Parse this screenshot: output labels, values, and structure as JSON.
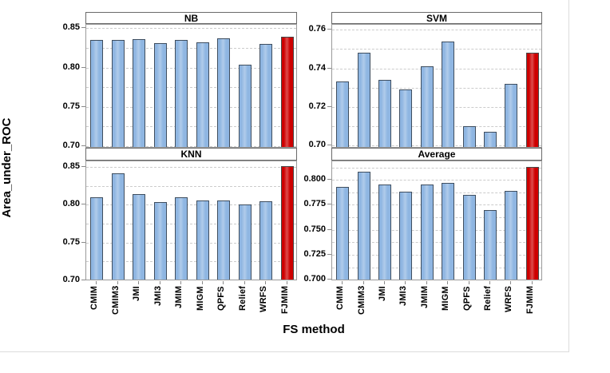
{
  "figure": {
    "ylabel": "Area_under_ROC",
    "xlabel": "FS method"
  },
  "colors": {
    "bar_fill": "#8FB6E2",
    "bar_edge": "#3F4E5F",
    "highlight_fill": "#CE0000",
    "highlight_edge": "#474747",
    "gridline": "#CCCCCC",
    "plot_border": "#9A9A9A",
    "band_border": "#6A6A6A",
    "tick": "#8A8A8A",
    "text": "#000000",
    "figure_edge": "#DCDCDC"
  },
  "chart_data": {
    "type": "bar",
    "title": "",
    "xlabel": "FS method",
    "ylabel": "Area_under_ROC",
    "grid": "horizontal dashed gridlines at major and minor (half-step) tick positions",
    "legend": "none",
    "categories": [
      "CMIM",
      "CMIM3",
      "JMI",
      "JMI3",
      "JMIM",
      "MIGM",
      "QPFS",
      "Relief",
      "WRFS",
      "FJMIM"
    ],
    "highlight_category": "FJMIM",
    "panels": [
      {
        "title": "NB",
        "ylim": [
          0.6965,
          0.8545
        ],
        "yticks": [
          {
            "value": 0.85,
            "label": "0.85"
          },
          {
            "value": 0.8,
            "label": "0.80"
          },
          {
            "value": 0.75,
            "label": "0.75"
          },
          {
            "value": 0.7,
            "label": "0.70"
          }
        ],
        "values": [
          0.835,
          0.835,
          0.836,
          0.831,
          0.835,
          0.832,
          0.837,
          0.804,
          0.83,
          0.839
        ]
      },
      {
        "title": "SVM",
        "ylim": [
          0.6985,
          0.7625
        ],
        "yticks": [
          {
            "value": 0.76,
            "label": "0.76"
          },
          {
            "value": 0.74,
            "label": "0.74"
          },
          {
            "value": 0.72,
            "label": "0.72"
          },
          {
            "value": 0.7,
            "label": "0.70"
          }
        ],
        "values": [
          0.733,
          0.748,
          0.734,
          0.729,
          0.741,
          0.754,
          0.71,
          0.707,
          0.732,
          0.748
        ]
      },
      {
        "title": "KNN",
        "ylim": [
          0.699,
          0.8575
        ],
        "yticks": [
          {
            "value": 0.85,
            "label": "0.85"
          },
          {
            "value": 0.8,
            "label": "0.80"
          },
          {
            "value": 0.75,
            "label": "0.75"
          },
          {
            "value": 0.7,
            "label": "0.70"
          }
        ],
        "values": [
          0.81,
          0.842,
          0.814,
          0.804,
          0.81,
          0.806,
          0.806,
          0.8,
          0.805,
          0.851
        ]
      },
      {
        "title": "Average",
        "ylim": [
          0.6985,
          0.8185
        ],
        "yticks": [
          {
            "value": 0.8,
            "label": "0.800"
          },
          {
            "value": 0.775,
            "label": "0.775"
          },
          {
            "value": 0.75,
            "label": "0.750"
          },
          {
            "value": 0.725,
            "label": "0.725"
          },
          {
            "value": 0.7,
            "label": "0.700"
          }
        ],
        "values": [
          0.793,
          0.808,
          0.795,
          0.788,
          0.795,
          0.797,
          0.785,
          0.77,
          0.789,
          0.813
        ]
      }
    ]
  }
}
